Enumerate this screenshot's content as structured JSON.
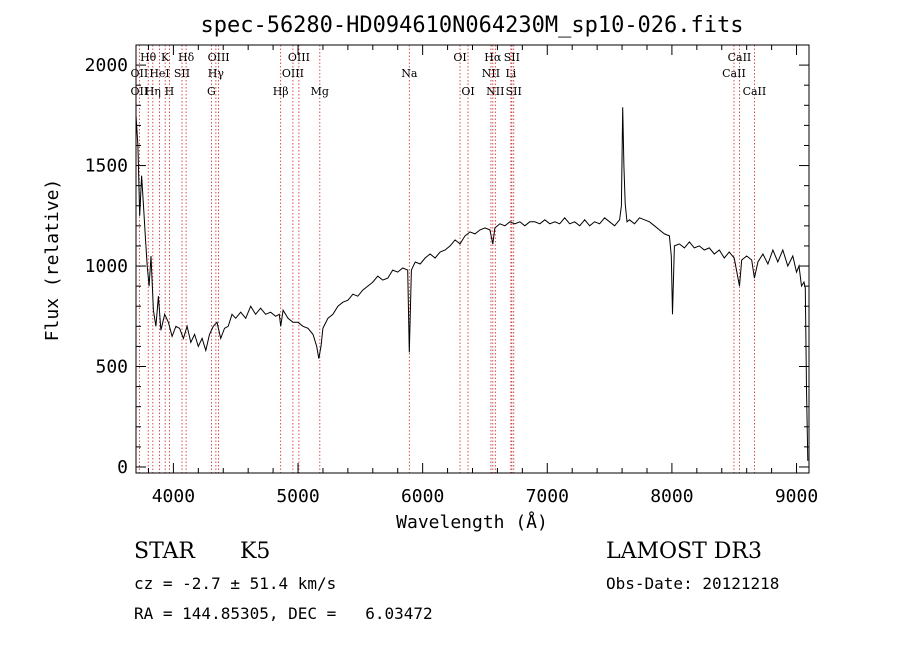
{
  "chart_data": {
    "type": "line",
    "title": "spec-56280-HD094610N064230M_sp10-026.fits",
    "xlabel": "Wavelength (Å)",
    "ylabel": "Flux (relative)",
    "xlim": [
      3700,
      9100
    ],
    "ylim": [
      -30,
      2100
    ],
    "x_ticks": [
      4000,
      5000,
      6000,
      7000,
      8000,
      9000
    ],
    "y_ticks": [
      0,
      500,
      1000,
      1500,
      2000
    ],
    "grid": false,
    "series": [
      {
        "x": [
          3700,
          3715,
          3730,
          3745,
          3760,
          3775,
          3790,
          3805,
          3820,
          3840,
          3860,
          3880,
          3900,
          3930,
          3960,
          3990,
          4020,
          4050,
          4080,
          4110,
          4140,
          4170,
          4200,
          4230,
          4260,
          4290,
          4320,
          4350,
          4380,
          4410,
          4440,
          4470,
          4500,
          4540,
          4580,
          4620,
          4660,
          4700,
          4740,
          4780,
          4820,
          4850,
          4861,
          4880,
          4920,
          4960,
          5000,
          5040,
          5080,
          5120,
          5150,
          5167,
          5184,
          5200,
          5240,
          5280,
          5320,
          5360,
          5400,
          5440,
          5480,
          5520,
          5560,
          5600,
          5640,
          5680,
          5720,
          5760,
          5800,
          5840,
          5880,
          5893,
          5910,
          5940,
          5980,
          6020,
          6060,
          6100,
          6140,
          6180,
          6220,
          6260,
          6300,
          6340,
          6380,
          6420,
          6460,
          6500,
          6540,
          6563,
          6580,
          6620,
          6660,
          6700,
          6740,
          6780,
          6820,
          6860,
          6900,
          6940,
          6980,
          7020,
          7060,
          7100,
          7140,
          7180,
          7220,
          7260,
          7300,
          7340,
          7380,
          7420,
          7460,
          7500,
          7540,
          7580,
          7595,
          7605,
          7615,
          7625,
          7640,
          7660,
          7700,
          7740,
          7780,
          7820,
          7860,
          7900,
          7940,
          7980,
          7995,
          8005,
          8020,
          8060,
          8100,
          8140,
          8180,
          8220,
          8260,
          8300,
          8340,
          8380,
          8420,
          8460,
          8500,
          8542,
          8560,
          8600,
          8640,
          8662,
          8690,
          8730,
          8770,
          8810,
          8850,
          8890,
          8930,
          8970,
          9000,
          9020,
          9040,
          9060,
          9070,
          9080,
          9090
        ],
        "y": [
          1750,
          1600,
          1250,
          1450,
          1300,
          1150,
          1000,
          900,
          1050,
          780,
          700,
          850,
          680,
          760,
          720,
          650,
          700,
          690,
          640,
          700,
          620,
          660,
          600,
          640,
          580,
          660,
          700,
          720,
          640,
          690,
          700,
          760,
          740,
          770,
          740,
          800,
          760,
          790,
          760,
          770,
          750,
          760,
          700,
          780,
          740,
          720,
          720,
          700,
          690,
          660,
          600,
          540,
          600,
          690,
          740,
          760,
          800,
          820,
          830,
          860,
          850,
          880,
          900,
          920,
          950,
          930,
          940,
          980,
          970,
          990,
          980,
          570,
          980,
          1020,
          1010,
          1040,
          1060,
          1040,
          1070,
          1080,
          1100,
          1130,
          1110,
          1150,
          1170,
          1160,
          1180,
          1190,
          1180,
          1110,
          1190,
          1210,
          1200,
          1220,
          1210,
          1220,
          1200,
          1220,
          1220,
          1210,
          1230,
          1210,
          1220,
          1210,
          1240,
          1210,
          1220,
          1200,
          1230,
          1200,
          1220,
          1210,
          1240,
          1220,
          1200,
          1230,
          1300,
          1790,
          1500,
          1310,
          1220,
          1230,
          1210,
          1240,
          1230,
          1220,
          1200,
          1180,
          1160,
          1150,
          1050,
          760,
          1100,
          1110,
          1090,
          1120,
          1090,
          1100,
          1080,
          1090,
          1060,
          1080,
          1040,
          1070,
          1040,
          900,
          1030,
          1050,
          1030,
          940,
          1020,
          1060,
          1010,
          1080,
          1020,
          1080,
          1000,
          1050,
          970,
          1000,
          900,
          920,
          890,
          390,
          30
        ]
      }
    ],
    "spectral_lines": [
      {
        "label": "Hθ",
        "x": 3798,
        "row": 1
      },
      {
        "label": "OII",
        "x": 3727,
        "row": 2
      },
      {
        "label": "OII",
        "x": 3727,
        "row": 3
      },
      {
        "label": "Hη",
        "x": 3835,
        "row": 3
      },
      {
        "label": "HeI",
        "x": 3889,
        "row": 2
      },
      {
        "label": "K",
        "x": 3934,
        "row": 1
      },
      {
        "label": "H",
        "x": 3968,
        "row": 3
      },
      {
        "label": "SII",
        "x": 4069,
        "row": 2
      },
      {
        "label": "Hδ",
        "x": 4102,
        "row": 1
      },
      {
        "label": "OIII",
        "x": 4363,
        "row": 1
      },
      {
        "label": "Hγ",
        "x": 4341,
        "row": 2
      },
      {
        "label": "G",
        "x": 4305,
        "row": 3
      },
      {
        "label": "Hβ",
        "x": 4861,
        "row": 3
      },
      {
        "label": "OIII",
        "x": 5007,
        "row": 1
      },
      {
        "label": "OIII",
        "x": 4959,
        "row": 2
      },
      {
        "label": "Mg",
        "x": 5175,
        "row": 3
      },
      {
        "label": "Na",
        "x": 5893,
        "row": 2
      },
      {
        "label": "OI",
        "x": 6300,
        "row": 1
      },
      {
        "label": "OI",
        "x": 6364,
        "row": 3
      },
      {
        "label": "Hα",
        "x": 6563,
        "row": 1
      },
      {
        "label": "NII",
        "x": 6548,
        "row": 2
      },
      {
        "label": "NII",
        "x": 6583,
        "row": 3
      },
      {
        "label": "SII",
        "x": 6716,
        "row": 1
      },
      {
        "label": "Li",
        "x": 6708,
        "row": 2
      },
      {
        "label": "SII",
        "x": 6731,
        "row": 3
      },
      {
        "label": "CaII",
        "x": 8542,
        "row": 1
      },
      {
        "label": "CaII",
        "x": 8498,
        "row": 2
      },
      {
        "label": "CaII",
        "x": 8662,
        "row": 3
      }
    ]
  },
  "info": {
    "object_class": "STAR",
    "subclass": "K5",
    "cz": "cz = -2.7 ± 51.4 km/s",
    "radec": "RA = 144.85305, DEC =   6.03472",
    "survey": "LAMOST DR3",
    "obs_date": "Obs-Date: 20121218"
  },
  "colors": {
    "line_marker": "#cc2222",
    "spectrum": "#000000"
  }
}
